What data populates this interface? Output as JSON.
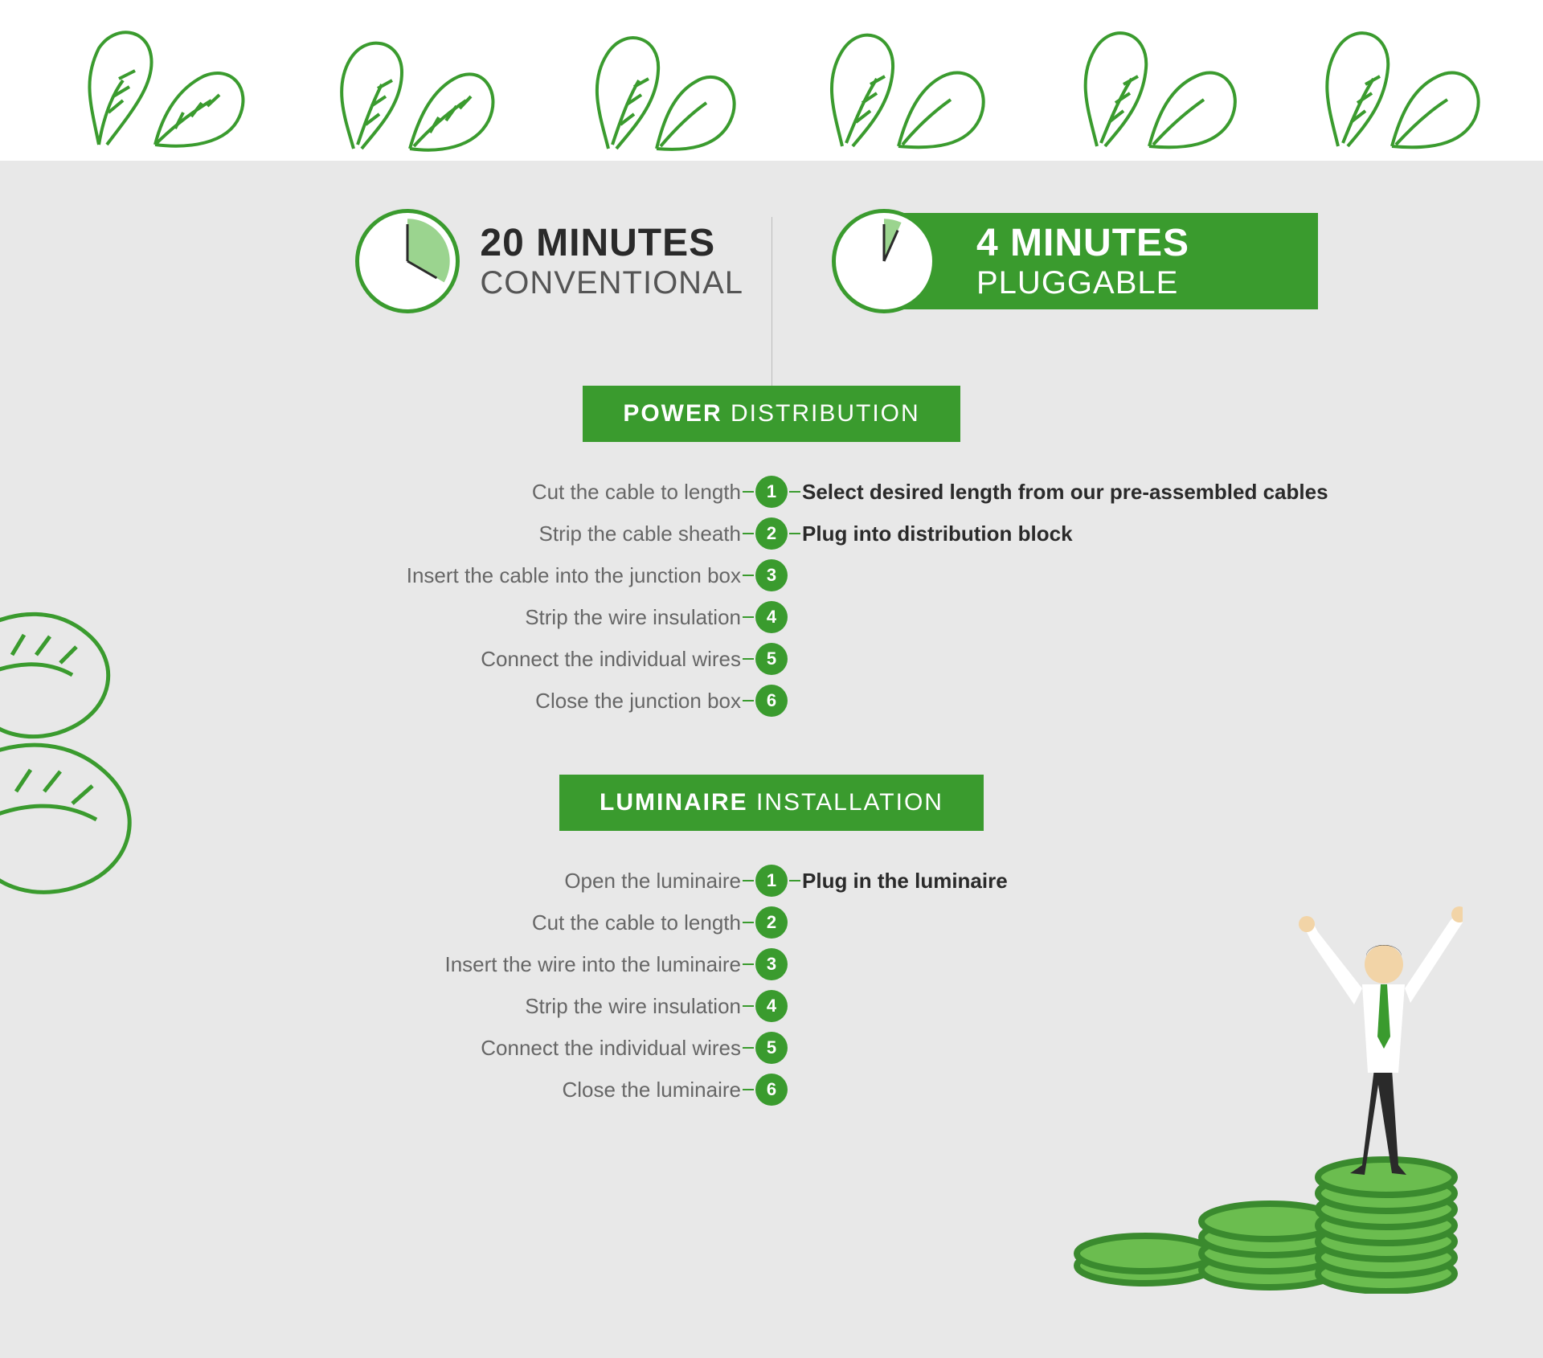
{
  "colors": {
    "primary_green": "#3a9b2e",
    "light_green": "#9bd48f",
    "coin_green": "#6bbd4f",
    "coin_dark": "#3a8a2e",
    "bg_grey": "#e8e8e8",
    "text_dark": "#2a2a2a",
    "text_grey": "#666666"
  },
  "fonts": {
    "heading_size": 48,
    "subheading_size": 40,
    "section_size": 30,
    "step_size": 26
  },
  "conventional": {
    "value": "20",
    "unit": "MINUTES",
    "label": "CONVENTIONAL",
    "clock_slice_deg": 120
  },
  "pluggable": {
    "value": "4",
    "unit": "MINUTES",
    "label": "PLUGGABLE",
    "clock_slice_deg": 24
  },
  "sections": [
    {
      "title_bold": "POWER",
      "title_light": " DISTRIBUTION",
      "steps": [
        {
          "n": 1,
          "left": "Cut the cable to length",
          "right": "Select desired length from our pre-assembled cables"
        },
        {
          "n": 2,
          "left": "Strip the cable sheath",
          "right": "Plug into distribution block"
        },
        {
          "n": 3,
          "left": "Insert the cable into the junction box",
          "right": ""
        },
        {
          "n": 4,
          "left": "Strip the wire insulation",
          "right": ""
        },
        {
          "n": 5,
          "left": "Connect the individual wires",
          "right": ""
        },
        {
          "n": 6,
          "left": "Close the junction box",
          "right": ""
        }
      ]
    },
    {
      "title_bold": "LUMINAIRE",
      "title_light": " INSTALLATION",
      "steps": [
        {
          "n": 1,
          "left": "Open the luminaire",
          "right": "Plug in the luminaire"
        },
        {
          "n": 2,
          "left": "Cut the cable to length",
          "right": ""
        },
        {
          "n": 3,
          "left": "Insert the wire into the luminaire",
          "right": ""
        },
        {
          "n": 4,
          "left": "Strip the wire insulation",
          "right": ""
        },
        {
          "n": 5,
          "left": "Connect the individual wires",
          "right": ""
        },
        {
          "n": 6,
          "left": "Close the luminaire",
          "right": ""
        }
      ]
    }
  ]
}
